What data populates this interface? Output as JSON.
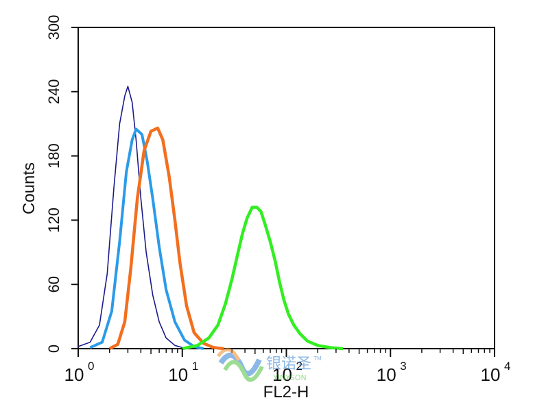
{
  "chart_data": {
    "type": "line",
    "xlabel": "FL2-H",
    "ylabel": "Counts",
    "x_scale": "log",
    "xlim": [
      1,
      10000
    ],
    "ylim": [
      0,
      300
    ],
    "y_ticks": [
      0,
      60,
      120,
      180,
      240,
      300
    ],
    "x_ticks": [
      {
        "value": 1,
        "base": "10",
        "exp": "0"
      },
      {
        "value": 10,
        "base": "10",
        "exp": "1"
      },
      {
        "value": 100,
        "base": "10",
        "exp": "2"
      },
      {
        "value": 1000,
        "base": "10",
        "exp": "3"
      },
      {
        "value": 10000,
        "base": "10",
        "exp": "4"
      }
    ],
    "grid": false,
    "series": [
      {
        "color": "#1a1a8c",
        "stroke": "thin",
        "points": [
          [
            1.0,
            2
          ],
          [
            1.3,
            6
          ],
          [
            1.6,
            22
          ],
          [
            1.9,
            70
          ],
          [
            2.2,
            150
          ],
          [
            2.5,
            210
          ],
          [
            2.8,
            236
          ],
          [
            3.0,
            245
          ],
          [
            3.3,
            230
          ],
          [
            3.6,
            195
          ],
          [
            4.0,
            140
          ],
          [
            4.5,
            90
          ],
          [
            5.2,
            50
          ],
          [
            6.0,
            25
          ],
          [
            7.0,
            10
          ],
          [
            8.5,
            3
          ],
          [
            10,
            1
          ]
        ]
      },
      {
        "color": "#2b9be8",
        "stroke": "medium",
        "points": [
          [
            1.3,
            1
          ],
          [
            1.7,
            6
          ],
          [
            2.1,
            35
          ],
          [
            2.5,
            100
          ],
          [
            2.9,
            165
          ],
          [
            3.3,
            195
          ],
          [
            3.6,
            205
          ],
          [
            4.1,
            200
          ],
          [
            4.6,
            175
          ],
          [
            5.2,
            140
          ],
          [
            6.0,
            95
          ],
          [
            7.0,
            55
          ],
          [
            8.5,
            25
          ],
          [
            10.5,
            8
          ],
          [
            13,
            2
          ],
          [
            16,
            0
          ]
        ]
      },
      {
        "color": "#f26f1e",
        "stroke": "thick",
        "points": [
          [
            2.0,
            0
          ],
          [
            2.4,
            4
          ],
          [
            2.8,
            25
          ],
          [
            3.2,
            75
          ],
          [
            3.7,
            140
          ],
          [
            4.3,
            185
          ],
          [
            5.0,
            203
          ],
          [
            5.8,
            206
          ],
          [
            6.5,
            195
          ],
          [
            7.5,
            160
          ],
          [
            8.5,
            120
          ],
          [
            9.5,
            80
          ],
          [
            11,
            40
          ],
          [
            13,
            15
          ],
          [
            16,
            5
          ],
          [
            20,
            1
          ],
          [
            25,
            0
          ]
        ]
      },
      {
        "color": "#33ee22",
        "stroke": "thick",
        "points": [
          [
            10,
            0
          ],
          [
            14,
            3
          ],
          [
            18,
            10
          ],
          [
            22,
            22
          ],
          [
            26,
            42
          ],
          [
            30,
            65
          ],
          [
            34,
            88
          ],
          [
            38,
            108
          ],
          [
            42,
            122
          ],
          [
            47,
            132
          ],
          [
            52,
            132
          ],
          [
            57,
            128
          ],
          [
            63,
            115
          ],
          [
            70,
            100
          ],
          [
            78,
            82
          ],
          [
            86,
            62
          ],
          [
            95,
            45
          ],
          [
            105,
            32
          ],
          [
            118,
            22
          ],
          [
            135,
            14
          ],
          [
            160,
            7
          ],
          [
            200,
            3
          ],
          [
            260,
            1
          ],
          [
            350,
            0
          ]
        ]
      }
    ]
  }
}
